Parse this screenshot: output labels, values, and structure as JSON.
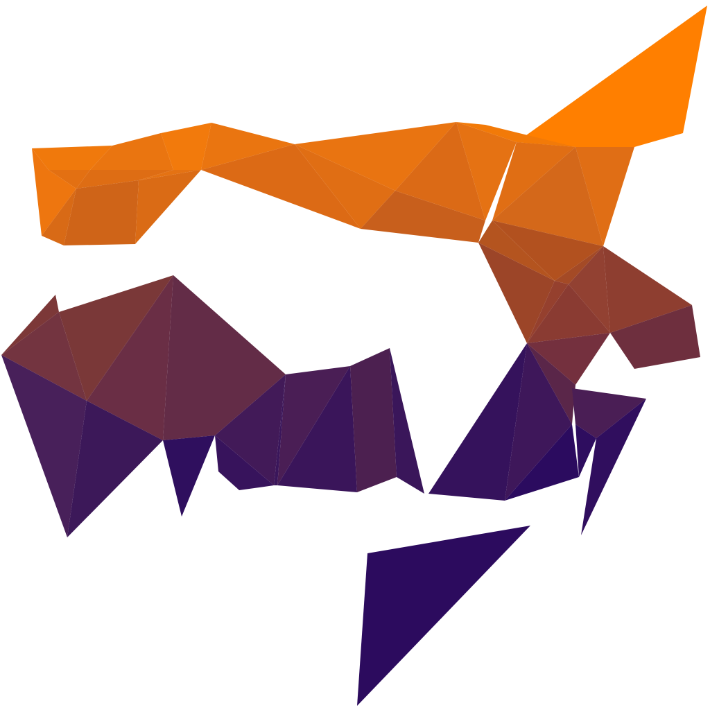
{
  "artwork": {
    "style": "low-poly",
    "background_color": "#ffffff",
    "palette": {
      "orange_bright": "#FF7F00",
      "orange": "#EC7410",
      "orange_dark": "#C45C20",
      "rust": "#8E3E30",
      "brown_red": "#7A3838",
      "maroon": "#5E2A45",
      "plum": "#4A1E52",
      "purple": "#3A155A",
      "indigo": "#2C0B5E"
    }
  }
}
